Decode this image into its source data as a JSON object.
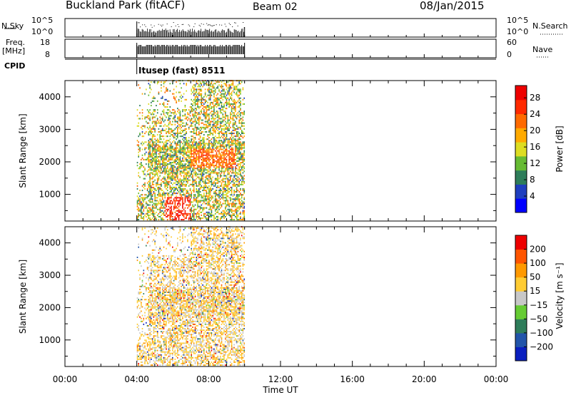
{
  "header": {
    "station": "Buckland Park (fitACF)",
    "beam": "Beam 02",
    "date": "08/Jan/2015"
  },
  "strips": {
    "nsky_label": "N.Sky",
    "nsky_left_ticks": [
      "10^5",
      "10^0"
    ],
    "nsky_right_ticks": [
      "10^5",
      "10^0"
    ],
    "nsearch_label": "N.Search",
    "freq_label_1": "Freq.",
    "freq_label_2": "[MHz]",
    "freq_ticks": [
      "18",
      "8"
    ],
    "nave_label": "Nave",
    "nave_ticks": [
      "60",
      "0"
    ],
    "cpid_label": "CPID",
    "cpid_value": "Itusep (fast) 8511"
  },
  "chart_data": [
    {
      "type": "heatmap",
      "panel": "power",
      "ylabel": "Slant Range [km]",
      "yticks": [
        1000,
        2000,
        3000,
        4000
      ],
      "ylim": [
        180,
        4500
      ],
      "xticks": [
        "00:00",
        "04:00",
        "08:00",
        "12:00",
        "16:00",
        "20:00",
        "00:00"
      ],
      "xlim_hours": [
        0,
        24
      ],
      "data_time_range_hours": [
        4.0,
        10.0
      ],
      "colorbar": {
        "label": "Power [dB]",
        "ticks": [
          4,
          8,
          12,
          16,
          20,
          24,
          28
        ],
        "range": [
          0,
          31
        ],
        "colors": [
          "#0000ff",
          "#1f3fbf",
          "#2e7d5a",
          "#66bb33",
          "#dddd22",
          "#ffaa00",
          "#ff6a00",
          "#ff2a00",
          "#ee0000"
        ]
      }
    },
    {
      "type": "heatmap",
      "panel": "velocity",
      "ylabel": "Slant Range [km]",
      "yticks": [
        1000,
        2000,
        3000,
        4000
      ],
      "ylim": [
        180,
        4500
      ],
      "xticks": [
        "00:00",
        "04:00",
        "08:00",
        "12:00",
        "16:00",
        "20:00",
        "00:00"
      ],
      "xlabel": "Time UT",
      "xlim_hours": [
        0,
        24
      ],
      "data_time_range_hours": [
        4.0,
        10.0
      ],
      "colorbar": {
        "label": "Velocity [m s⁻¹]",
        "ticks": [
          "200",
          "100",
          "50",
          "15",
          "−15",
          "−50",
          "−100",
          "−200"
        ],
        "colors": [
          "#0a1fbf",
          "#2255aa",
          "#2e7d5a",
          "#66cc33",
          "#c8c8c8",
          "#ffcc33",
          "#ff9900",
          "#ff5500",
          "#ee0000"
        ]
      }
    }
  ]
}
